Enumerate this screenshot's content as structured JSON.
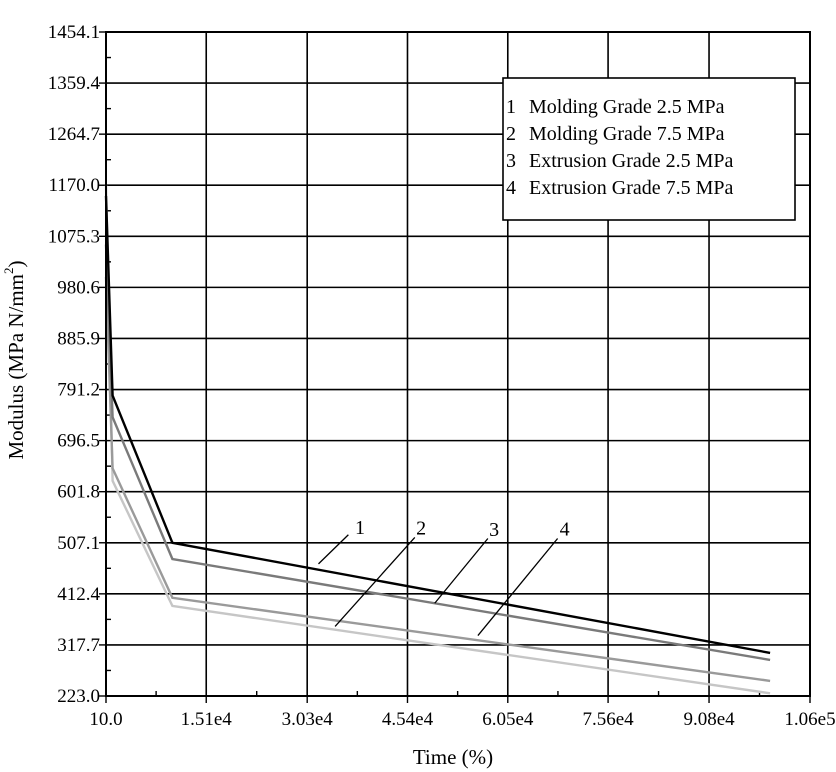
{
  "chart_data": {
    "type": "line",
    "xlabel": "Time (%)",
    "ylabel": "Modulus (MPa N/mm²)",
    "ylabel_main": "Modulus (MPa N/mm",
    "ylabel_sup": "2",
    "ylabel_close": ")",
    "xlim": [
      10.0,
      106000
    ],
    "ylim": [
      223.0,
      1454.1
    ],
    "x_ticks": [
      {
        "value": 10.0,
        "label": "10.0"
      },
      {
        "value": 15100,
        "label": "1.51e4"
      },
      {
        "value": 30300,
        "label": "3.03e4"
      },
      {
        "value": 45400,
        "label": "4.54e4"
      },
      {
        "value": 60500,
        "label": "6.05e4"
      },
      {
        "value": 75600,
        "label": "7.56e4"
      },
      {
        "value": 90800,
        "label": "9.08e4"
      },
      {
        "value": 106000,
        "label": "1.06e5"
      }
    ],
    "y_ticks": [
      {
        "value": 223.0,
        "label": "223.0"
      },
      {
        "value": 317.7,
        "label": "317.7"
      },
      {
        "value": 412.4,
        "label": "412.4"
      },
      {
        "value": 507.1,
        "label": "507.1"
      },
      {
        "value": 601.8,
        "label": "601.8"
      },
      {
        "value": 696.5,
        "label": "696.5"
      },
      {
        "value": 791.2,
        "label": "791.2"
      },
      {
        "value": 885.9,
        "label": "885.9"
      },
      {
        "value": 980.6,
        "label": "980.6"
      },
      {
        "value": 1075.3,
        "label": "1075.3"
      },
      {
        "value": 1170.0,
        "label": "1170.0"
      },
      {
        "value": 1264.7,
        "label": "1264.7"
      },
      {
        "value": 1359.4,
        "label": "1359.4"
      },
      {
        "value": 1454.1,
        "label": "1454.1"
      }
    ],
    "grid": true,
    "legend_position": "top-right",
    "legend": [
      {
        "num": "1",
        "label": "Molding Grade 2.5 MPa"
      },
      {
        "num": "2",
        "label": "Molding Grade 7.5 MPa"
      },
      {
        "num": "3",
        "label": "Extrusion Grade 2.5 MPa"
      },
      {
        "num": "4",
        "label": "Extrusion Grade 7.5 MPa"
      }
    ],
    "series": [
      {
        "id": "1",
        "color": "#000000",
        "x": [
          10,
          1000,
          10000,
          100000
        ],
        "y": [
          1150,
          780,
          507,
          303
        ]
      },
      {
        "id": "2",
        "color": "#7a7a7a",
        "x": [
          10,
          1000,
          10000,
          100000
        ],
        "y": [
          1060,
          740,
          477,
          290
        ]
      },
      {
        "id": "3",
        "color": "#9a9a9a",
        "x": [
          10,
          1000,
          10000,
          100000
        ],
        "y": [
          1000,
          645,
          405,
          251
        ]
      },
      {
        "id": "4",
        "color": "#c6c6c6",
        "x": [
          10,
          1000,
          10000,
          100000
        ],
        "y": [
          1170,
          622,
          390,
          228
        ]
      }
    ],
    "callouts": [
      {
        "label": "1",
        "from": [
          32000,
          468
        ],
        "to": [
          36500,
          522
        ],
        "text_at": [
          37500,
          523
        ]
      },
      {
        "label": "2",
        "from": [
          34500,
          352
        ],
        "to": [
          46500,
          517
        ],
        "text_at": [
          46700,
          522
        ]
      },
      {
        "label": "3",
        "from": [
          49500,
          395
        ],
        "to": [
          57500,
          515
        ],
        "text_at": [
          57700,
          520
        ]
      },
      {
        "label": "4",
        "from": [
          56000,
          335
        ],
        "to": [
          68000,
          515
        ],
        "text_at": [
          68300,
          521
        ]
      }
    ]
  }
}
